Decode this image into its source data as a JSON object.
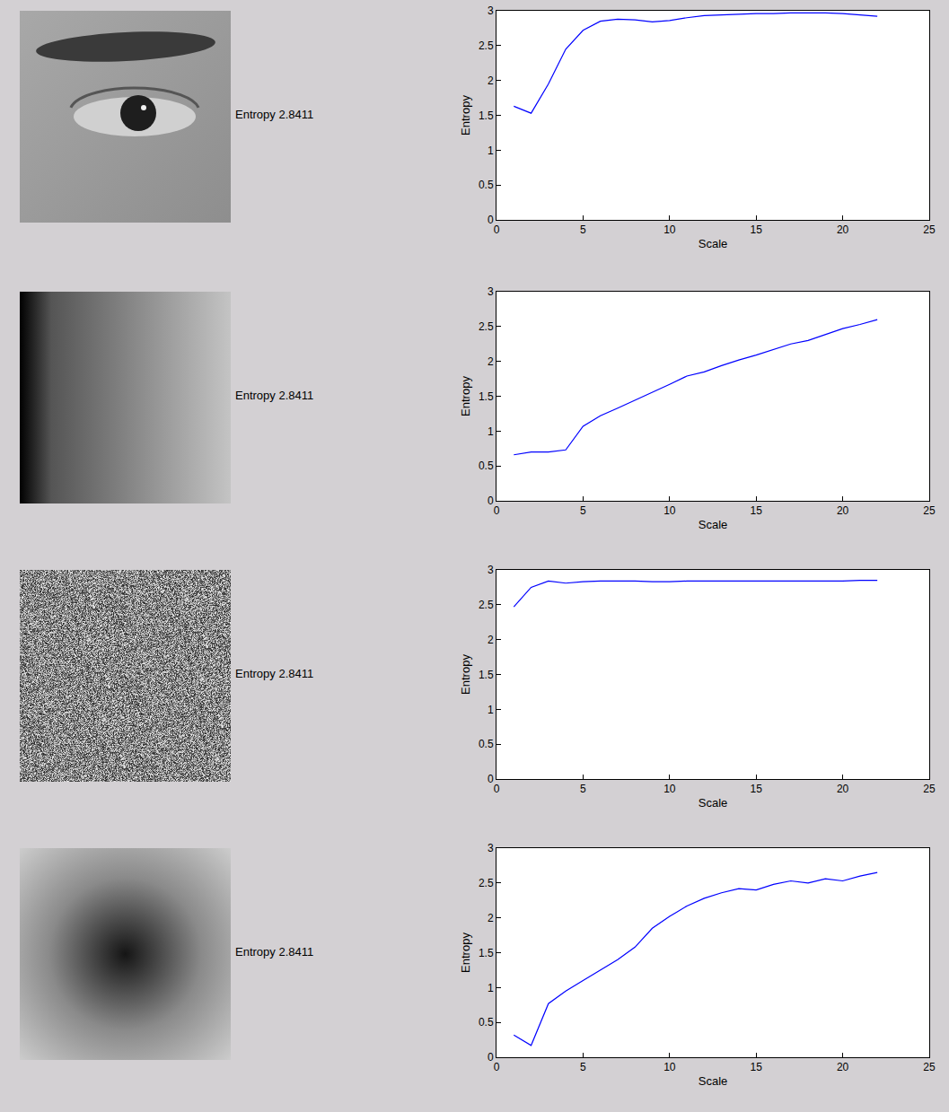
{
  "chart_data": [
    {
      "type": "line",
      "annotations": [
        "Entropy 2.8411"
      ],
      "x_label": "Scale",
      "y_label": "Entropy",
      "x": [
        1,
        2,
        3,
        4,
        5,
        6,
        7,
        8,
        9,
        10,
        11,
        12,
        13,
        14,
        15,
        16,
        17,
        18,
        19,
        20,
        21,
        22
      ],
      "values": [
        1.63,
        1.53,
        1.95,
        2.45,
        2.72,
        2.85,
        2.88,
        2.87,
        2.84,
        2.86,
        2.9,
        2.93,
        2.94,
        2.95,
        2.96,
        2.96,
        2.97,
        2.97,
        2.97,
        2.96,
        2.94,
        2.92
      ],
      "color": "#0000ff",
      "xlim": [
        0,
        25
      ],
      "ylim": [
        0,
        3
      ],
      "xticks": [
        0,
        5,
        10,
        15,
        20,
        25
      ],
      "yticks": [
        0,
        0.5,
        1,
        1.5,
        2,
        2.5,
        3
      ],
      "grid": false
    },
    {
      "type": "line",
      "annotations": [
        "Entropy 2.8411"
      ],
      "x_label": "Scale",
      "y_label": "Entropy",
      "x": [
        1,
        2,
        3,
        4,
        5,
        6,
        7,
        8,
        9,
        10,
        11,
        12,
        13,
        14,
        15,
        16,
        17,
        18,
        19,
        20,
        21,
        22
      ],
      "values": [
        0.66,
        0.7,
        0.7,
        0.73,
        1.07,
        1.22,
        1.33,
        1.44,
        1.55,
        1.67,
        1.79,
        1.85,
        1.94,
        2.02,
        2.09,
        2.17,
        2.25,
        2.3,
        2.38,
        2.47,
        2.53,
        2.6
      ],
      "color": "#0000ff",
      "xlim": [
        0,
        25
      ],
      "ylim": [
        0,
        3
      ],
      "xticks": [
        0,
        5,
        10,
        15,
        20,
        25
      ],
      "yticks": [
        0,
        0.5,
        1,
        1.5,
        2,
        2.5,
        3
      ],
      "grid": false
    },
    {
      "type": "line",
      "annotations": [
        "Entropy 2.8411"
      ],
      "x_label": "Scale",
      "y_label": "Entropy",
      "x": [
        1,
        2,
        3,
        4,
        5,
        6,
        7,
        8,
        9,
        10,
        11,
        12,
        13,
        14,
        15,
        16,
        17,
        18,
        19,
        20,
        21,
        22
      ],
      "values": [
        2.47,
        2.75,
        2.84,
        2.81,
        2.83,
        2.84,
        2.84,
        2.84,
        2.83,
        2.83,
        2.84,
        2.84,
        2.84,
        2.84,
        2.84,
        2.84,
        2.84,
        2.84,
        2.84,
        2.84,
        2.85,
        2.85
      ],
      "color": "#0000ff",
      "xlim": [
        0,
        25
      ],
      "ylim": [
        0,
        3
      ],
      "xticks": [
        0,
        5,
        10,
        15,
        20,
        25
      ],
      "yticks": [
        0,
        0.5,
        1,
        1.5,
        2,
        2.5,
        3
      ],
      "grid": false
    },
    {
      "type": "line",
      "annotations": [
        "Entropy 2.8411"
      ],
      "x_label": "Scale",
      "y_label": "Entropy",
      "x": [
        1,
        2,
        3,
        4,
        5,
        6,
        7,
        8,
        9,
        10,
        11,
        12,
        13,
        14,
        15,
        16,
        17,
        18,
        19,
        20,
        21,
        22
      ],
      "values": [
        0.32,
        0.17,
        0.77,
        0.95,
        1.1,
        1.25,
        1.4,
        1.58,
        1.85,
        2.02,
        2.17,
        2.28,
        2.36,
        2.42,
        2.4,
        2.48,
        2.53,
        2.5,
        2.56,
        2.53,
        2.6,
        2.65
      ],
      "color": "#0000ff",
      "xlim": [
        0,
        25
      ],
      "ylim": [
        0,
        3
      ],
      "xticks": [
        0,
        5,
        10,
        15,
        20,
        25
      ],
      "yticks": [
        0,
        0.5,
        1,
        1.5,
        2,
        2.5,
        3
      ],
      "grid": false
    }
  ]
}
